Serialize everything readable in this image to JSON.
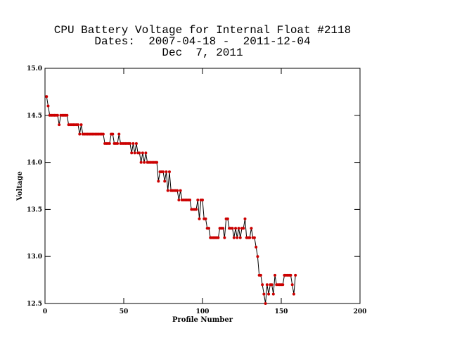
{
  "chart_data": {
    "type": "line",
    "title": "CPU Battery Voltage for Internal Float #2118",
    "subtitle": "Dates:  2007-04-18 -  2011-12-04",
    "date_line": "Dec  7, 2011",
    "x_label": "Profile Number",
    "y_label": "Voltage",
    "xlim": [
      0,
      200
    ],
    "xticks": [
      0,
      50,
      100,
      150,
      200
    ],
    "ylim": [
      12.5,
      15.0
    ],
    "yticks": [
      {
        "value": 12.5,
        "label": "12.5"
      },
      {
        "value": 13.0,
        "label": "13.0"
      },
      {
        "value": 13.5,
        "label": "13.5"
      },
      {
        "value": 14.0,
        "label": "14.0"
      },
      {
        "value": 14.5,
        "label": "14.5"
      },
      {
        "value": 15.0,
        "label": "15.0"
      }
    ],
    "line_color": "#000000",
    "marker_color": "#cc0000",
    "x": [
      1,
      2,
      3,
      4,
      5,
      6,
      7,
      8,
      9,
      10,
      11,
      12,
      13,
      14,
      15,
      16,
      17,
      18,
      19,
      20,
      21,
      22,
      23,
      24,
      25,
      26,
      27,
      28,
      29,
      30,
      31,
      32,
      33,
      34,
      35,
      36,
      37,
      38,
      39,
      40,
      41,
      42,
      43,
      44,
      45,
      46,
      47,
      48,
      49,
      50,
      51,
      52,
      53,
      54,
      55,
      56,
      57,
      58,
      59,
      60,
      61,
      62,
      63,
      64,
      65,
      66,
      67,
      68,
      69,
      70,
      71,
      72,
      73,
      74,
      75,
      76,
      77,
      78,
      79,
      80,
      81,
      82,
      83,
      84,
      85,
      86,
      87,
      88,
      89,
      90,
      91,
      92,
      93,
      94,
      95,
      96,
      97,
      98,
      99,
      100,
      101,
      102,
      103,
      104,
      105,
      106,
      107,
      108,
      109,
      110,
      111,
      112,
      113,
      114,
      115,
      116,
      117,
      118,
      119,
      120,
      121,
      122,
      123,
      124,
      125,
      126,
      127,
      128,
      129,
      130,
      131,
      132,
      133,
      134,
      135,
      136,
      137,
      138,
      139,
      140,
      141,
      142,
      143,
      144,
      145,
      146,
      147,
      148,
      149,
      150,
      151,
      152,
      153,
      154,
      155,
      156,
      157,
      158,
      159
    ],
    "values": [
      14.7,
      14.6,
      14.5,
      14.5,
      14.5,
      14.5,
      14.5,
      14.5,
      14.4,
      14.5,
      14.5,
      14.5,
      14.5,
      14.5,
      14.4,
      14.4,
      14.4,
      14.4,
      14.4,
      14.4,
      14.4,
      14.3,
      14.4,
      14.3,
      14.3,
      14.3,
      14.3,
      14.3,
      14.3,
      14.3,
      14.3,
      14.3,
      14.3,
      14.3,
      14.3,
      14.3,
      14.3,
      14.2,
      14.2,
      14.2,
      14.2,
      14.3,
      14.3,
      14.2,
      14.2,
      14.2,
      14.3,
      14.2,
      14.2,
      14.2,
      14.2,
      14.2,
      14.2,
      14.2,
      14.1,
      14.2,
      14.1,
      14.2,
      14.1,
      14.1,
      14.0,
      14.1,
      14.0,
      14.1,
      14.0,
      14.0,
      14.0,
      14.0,
      14.0,
      14.0,
      14.0,
      13.8,
      13.9,
      13.9,
      13.9,
      13.8,
      13.9,
      13.7,
      13.9,
      13.7,
      13.7,
      13.7,
      13.7,
      13.7,
      13.6,
      13.7,
      13.6,
      13.6,
      13.6,
      13.6,
      13.6,
      13.6,
      13.5,
      13.5,
      13.5,
      13.5,
      13.6,
      13.4,
      13.6,
      13.6,
      13.4,
      13.4,
      13.3,
      13.3,
      13.2,
      13.2,
      13.2,
      13.2,
      13.2,
      13.2,
      13.3,
      13.3,
      13.3,
      13.2,
      13.4,
      13.4,
      13.3,
      13.3,
      13.3,
      13.2,
      13.3,
      13.2,
      13.3,
      13.2,
      13.3,
      13.3,
      13.4,
      13.2,
      13.2,
      13.2,
      13.3,
      13.2,
      13.2,
      13.1,
      13.0,
      12.8,
      12.8,
      12.7,
      12.6,
      12.5,
      12.7,
      12.6,
      12.7,
      12.7,
      12.6,
      12.8,
      12.7,
      12.7,
      12.7,
      12.7,
      12.7,
      12.8,
      12.8,
      12.8,
      12.8,
      12.8,
      12.7,
      12.6,
      12.8
    ]
  }
}
